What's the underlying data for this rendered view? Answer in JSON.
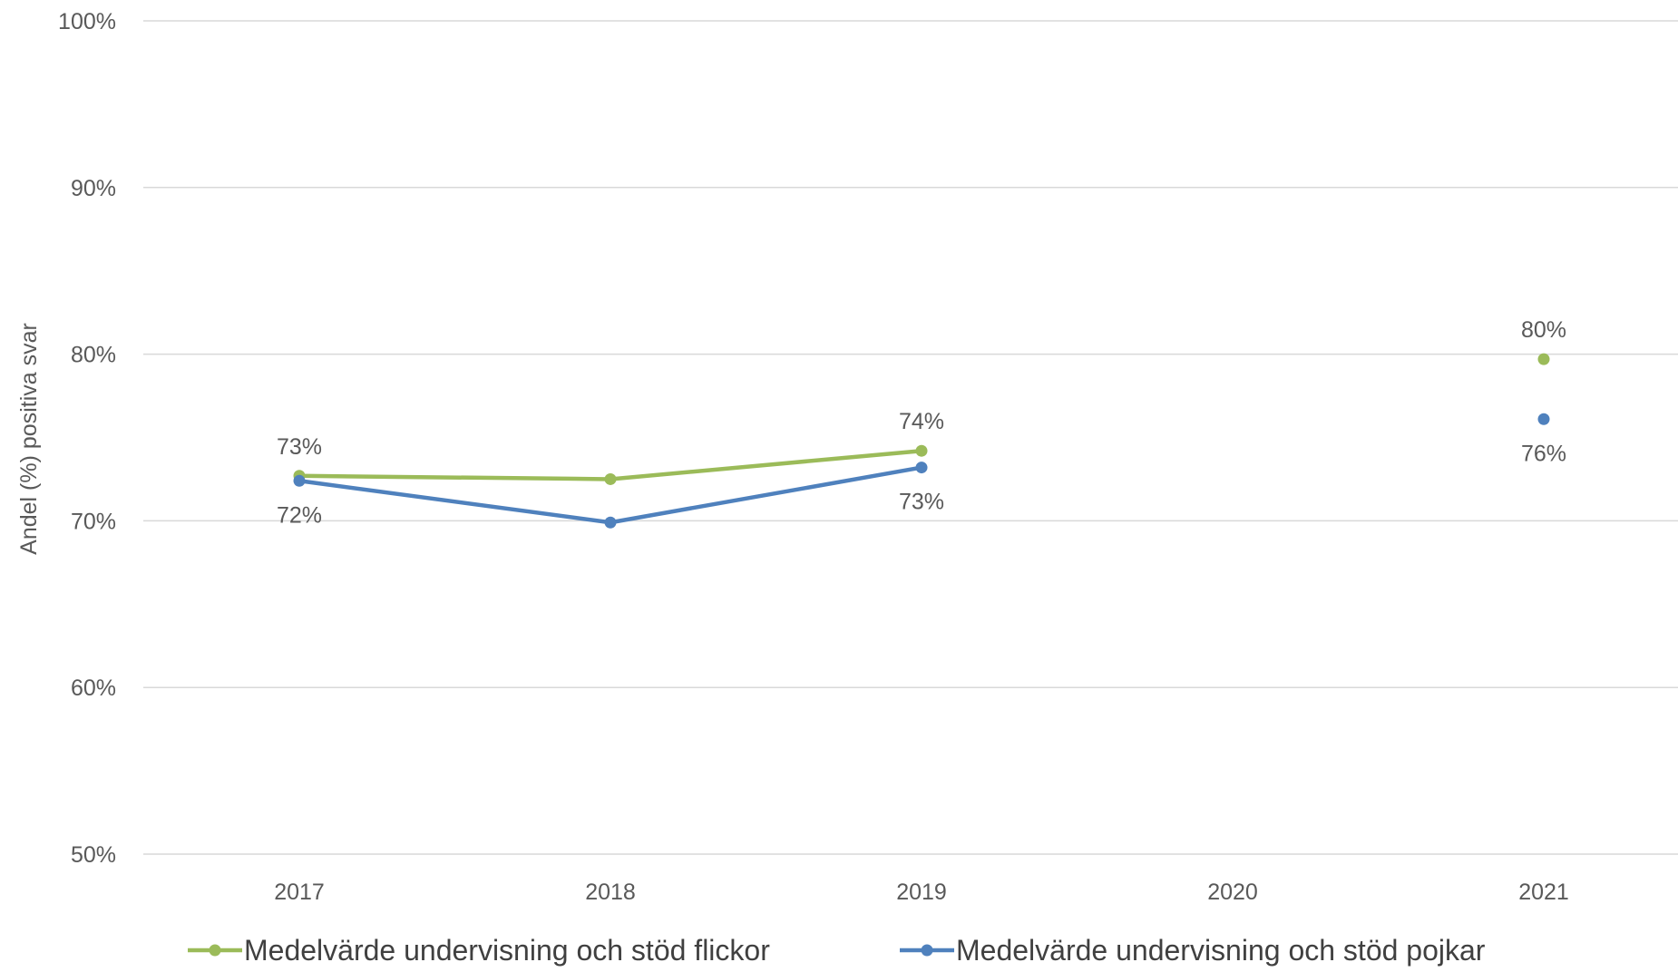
{
  "chart_data": {
    "type": "line",
    "title": "",
    "xlabel": "",
    "ylabel": "Andel (%) positiva svar",
    "categories": [
      "2017",
      "2018",
      "2019",
      "2020",
      "2021"
    ],
    "ylim": [
      50,
      100
    ],
    "y_ticks": [
      50,
      60,
      70,
      80,
      90,
      100
    ],
    "y_tick_labels": [
      "50%",
      "60%",
      "70%",
      "80%",
      "90%",
      "100%"
    ],
    "grid": true,
    "legend_position": "bottom",
    "series": [
      {
        "name": "Medelvärde undervisning och stöd flickor",
        "color": "#9BBB59",
        "values": [
          72.7,
          72.5,
          74.2,
          null,
          79.7
        ],
        "labels": [
          "73%",
          null,
          "74%",
          null,
          "80%"
        ],
        "label_positions": [
          "above",
          null,
          "above",
          null,
          "above"
        ]
      },
      {
        "name": "Medelvärde undervisning och stöd pojkar",
        "color": "#4F81BD",
        "values": [
          72.4,
          69.9,
          73.2,
          null,
          76.1
        ],
        "labels": [
          "72%",
          null,
          "73%",
          null,
          "76%"
        ],
        "label_positions": [
          "below",
          null,
          "below",
          null,
          "below"
        ]
      }
    ]
  }
}
